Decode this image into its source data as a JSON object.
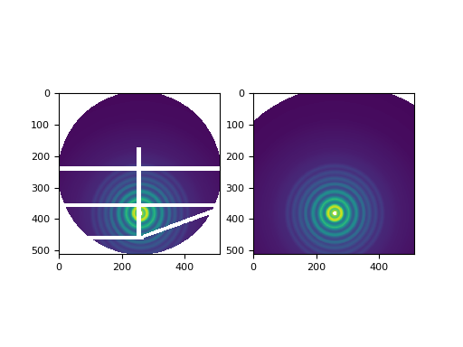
{
  "chart_data": [
    {
      "type": "heatmap",
      "image_size": [
        512,
        512
      ],
      "center": [
        258,
        383
      ],
      "beamstop_radius": 6,
      "aperture": {
        "center": [
          256,
          256
        ],
        "radius": 258
      },
      "mask_rects": [
        [
          0,
          512,
          235,
          248
        ],
        [
          0,
          512,
          352,
          362
        ],
        [
          0,
          270,
          455,
          466
        ],
        [
          245,
          260,
          175,
          455
        ]
      ],
      "mask_polygons": [
        [
          [
            265,
            452
          ],
          [
            500,
            365
          ],
          [
            505,
            378
          ],
          [
            268,
            462
          ]
        ]
      ],
      "radial_profile": {
        "r": [
          0,
          5,
          10,
          15,
          20,
          25,
          30,
          35,
          40,
          45,
          50,
          55,
          60,
          65,
          70,
          75,
          80,
          85,
          90,
          95,
          100,
          110,
          120,
          130,
          140,
          150,
          160,
          180,
          200,
          250,
          300,
          400
        ],
        "values": [
          0.9,
          0.95,
          0.8,
          0.75,
          0.95,
          0.85,
          0.55,
          0.45,
          0.6,
          0.7,
          0.55,
          0.4,
          0.35,
          0.5,
          0.55,
          0.4,
          0.3,
          0.3,
          0.42,
          0.4,
          0.28,
          0.35,
          0.25,
          0.3,
          0.22,
          0.26,
          0.2,
          0.19,
          0.17,
          0.15,
          0.13,
          0.12
        ]
      },
      "color_range": [
        0.1,
        1.0
      ],
      "color": "viridis",
      "xlim": [
        0,
        512
      ],
      "ylim": [
        512,
        0
      ],
      "xticks": [
        0,
        200,
        400
      ],
      "yticks": [
        0,
        100,
        200,
        300,
        400,
        500
      ]
    },
    {
      "type": "heatmap",
      "image_size": [
        512,
        512
      ],
      "center": [
        258,
        383
      ],
      "beamstop_radius": 6,
      "aperture": {
        "center": [
          290,
          410
        ],
        "radius": 430
      },
      "mask_rects": [],
      "mask_polygons": [],
      "radial_profile": {
        "r": [
          0,
          5,
          10,
          15,
          20,
          25,
          30,
          35,
          40,
          45,
          50,
          55,
          60,
          65,
          70,
          75,
          80,
          85,
          90,
          95,
          100,
          110,
          120,
          130,
          140,
          150,
          160,
          180,
          200,
          250,
          300,
          400
        ],
        "values": [
          0.9,
          0.95,
          0.8,
          0.75,
          0.95,
          0.85,
          0.55,
          0.45,
          0.6,
          0.7,
          0.55,
          0.4,
          0.35,
          0.5,
          0.55,
          0.4,
          0.3,
          0.3,
          0.42,
          0.4,
          0.28,
          0.35,
          0.25,
          0.3,
          0.22,
          0.26,
          0.2,
          0.19,
          0.17,
          0.15,
          0.13,
          0.12
        ]
      },
      "color_range": [
        0.1,
        1.0
      ],
      "color": "viridis",
      "xlim": [
        0,
        512
      ],
      "ylim": [
        512,
        0
      ],
      "xticks": [
        0,
        200,
        400
      ],
      "yticks": [
        0,
        100,
        200,
        300,
        400,
        500
      ]
    }
  ]
}
